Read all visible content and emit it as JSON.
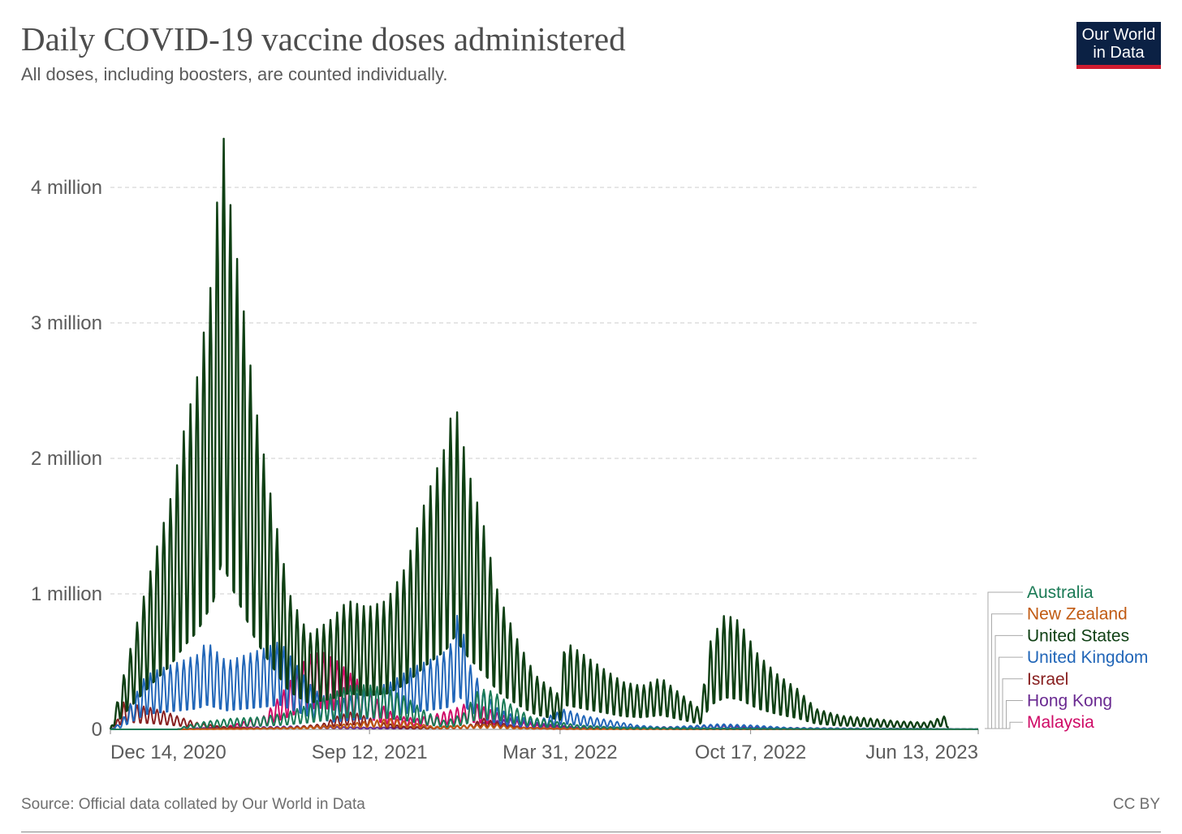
{
  "header": {
    "title": "Daily COVID-19 vaccine doses administered",
    "subtitle": "All doses, including boosters, are counted individually.",
    "logo_line1": "Our World",
    "logo_line2": "in Data"
  },
  "footer": {
    "source": "Source: Official data collated by Our World in Data",
    "license": "CC BY"
  },
  "chart_data": {
    "type": "line",
    "title": "Daily COVID-19 vaccine doses administered",
    "subtitle": "All doses, including boosters, are counted individually.",
    "xlabel": "",
    "ylabel": "",
    "x_start": "2020-12-14",
    "x_end": "2023-06-13",
    "ylim": [
      0,
      4600000
    ],
    "y_ticks": [
      {
        "value": 0,
        "label": "0"
      },
      {
        "value": 1000000,
        "label": "1 million"
      },
      {
        "value": 2000000,
        "label": "2 million"
      },
      {
        "value": 3000000,
        "label": "3 million"
      },
      {
        "value": 4000000,
        "label": "4 million"
      }
    ],
    "x_ticks": [
      {
        "date": "2020-12-14",
        "label": "Dec 14, 2020"
      },
      {
        "date": "2021-09-12",
        "label": "Sep 12, 2021"
      },
      {
        "date": "2022-03-31",
        "label": "Mar 31, 2022"
      },
      {
        "date": "2022-10-17",
        "label": "Oct 17, 2022"
      },
      {
        "date": "2023-06-13",
        "label": "Jun 13, 2023"
      }
    ],
    "grid": "horizontal dashed",
    "legend_position": "right",
    "series": [
      {
        "name": "Australia",
        "color": "#1a7a55",
        "points": [
          [
            "2020-12-14",
            0
          ],
          [
            "2021-02-22",
            0
          ],
          [
            "2021-03-05",
            30000
          ],
          [
            "2021-03-25",
            60000
          ],
          [
            "2021-04-20",
            80000
          ],
          [
            "2021-05-20",
            90000
          ],
          [
            "2021-06-15",
            120000
          ],
          [
            "2021-07-10",
            180000
          ],
          [
            "2021-07-30",
            250000
          ],
          [
            "2021-08-20",
            320000
          ],
          [
            "2021-09-10",
            330000
          ],
          [
            "2021-09-30",
            300000
          ],
          [
            "2021-10-20",
            240000
          ],
          [
            "2021-11-10",
            130000
          ],
          [
            "2021-12-01",
            60000
          ],
          [
            "2021-12-20",
            120000
          ],
          [
            "2022-01-05",
            300000
          ],
          [
            "2022-01-20",
            280000
          ],
          [
            "2022-02-10",
            170000
          ],
          [
            "2022-03-01",
            90000
          ],
          [
            "2022-03-25",
            60000
          ],
          [
            "2022-04-20",
            30000
          ],
          [
            "2022-06-01",
            15000
          ],
          [
            "2022-09-01",
            8000
          ],
          [
            "2023-01-01",
            3000
          ],
          [
            "2023-06-13",
            1000
          ]
        ]
      },
      {
        "name": "New Zealand",
        "color": "#c15b13",
        "points": [
          [
            "2020-12-14",
            0
          ],
          [
            "2021-02-20",
            0
          ],
          [
            "2021-05-01",
            5000
          ],
          [
            "2021-07-01",
            15000
          ],
          [
            "2021-08-20",
            40000
          ],
          [
            "2021-09-10",
            60000
          ],
          [
            "2021-10-05",
            80000
          ],
          [
            "2021-10-25",
            50000
          ],
          [
            "2021-11-20",
            20000
          ],
          [
            "2022-01-20",
            40000
          ],
          [
            "2022-02-15",
            15000
          ],
          [
            "2022-05-01",
            3000
          ],
          [
            "2023-06-13",
            500
          ]
        ]
      },
      {
        "name": "United States",
        "color": "#0f4014",
        "points": [
          [
            "2020-12-14",
            0
          ],
          [
            "2020-12-28",
            400000
          ],
          [
            "2021-01-15",
            900000
          ],
          [
            "2021-01-30",
            1300000
          ],
          [
            "2021-02-15",
            1700000
          ],
          [
            "2021-03-01",
            2200000
          ],
          [
            "2021-03-15",
            2600000
          ],
          [
            "2021-04-01",
            3400000
          ],
          [
            "2021-04-10",
            4500000
          ],
          [
            "2021-04-20",
            3800000
          ],
          [
            "2021-05-01",
            3200000
          ],
          [
            "2021-05-15",
            2400000
          ],
          [
            "2021-06-01",
            1700000
          ],
          [
            "2021-06-20",
            1000000
          ],
          [
            "2021-07-10",
            700000
          ],
          [
            "2021-08-01",
            800000
          ],
          [
            "2021-08-20",
            950000
          ],
          [
            "2021-09-10",
            900000
          ],
          [
            "2021-09-30",
            950000
          ],
          [
            "2021-10-20",
            1200000
          ],
          [
            "2021-11-10",
            1700000
          ],
          [
            "2021-12-01",
            2100000
          ],
          [
            "2021-12-10",
            2450000
          ],
          [
            "2021-12-25",
            1900000
          ],
          [
            "2022-01-10",
            1500000
          ],
          [
            "2022-01-25",
            1000000
          ],
          [
            "2022-02-15",
            650000
          ],
          [
            "2022-03-05",
            400000
          ],
          [
            "2022-03-31",
            250000
          ],
          [
            "2022-04-05",
            650000
          ],
          [
            "2022-04-25",
            550000
          ],
          [
            "2022-05-15",
            450000
          ],
          [
            "2022-06-05",
            350000
          ],
          [
            "2022-06-25",
            320000
          ],
          [
            "2022-07-15",
            380000
          ],
          [
            "2022-08-05",
            260000
          ],
          [
            "2022-08-25",
            150000
          ],
          [
            "2022-09-05",
            650000
          ],
          [
            "2022-09-20",
            850000
          ],
          [
            "2022-10-05",
            800000
          ],
          [
            "2022-10-25",
            550000
          ],
          [
            "2022-11-15",
            400000
          ],
          [
            "2022-12-05",
            300000
          ],
          [
            "2022-12-25",
            150000
          ],
          [
            "2023-01-20",
            100000
          ],
          [
            "2023-02-20",
            80000
          ],
          [
            "2023-03-20",
            60000
          ],
          [
            "2023-04-20",
            50000
          ],
          [
            "2023-05-10",
            100000
          ],
          [
            "2023-05-13",
            30000
          ]
        ]
      },
      {
        "name": "United Kingdom",
        "color": "#2166b8",
        "points": [
          [
            "2020-12-14",
            0
          ],
          [
            "2020-12-25",
            50000
          ],
          [
            "2021-01-05",
            200000
          ],
          [
            "2021-01-20",
            400000
          ],
          [
            "2021-02-05",
            450000
          ],
          [
            "2021-02-25",
            500000
          ],
          [
            "2021-03-15",
            550000
          ],
          [
            "2021-03-25",
            650000
          ],
          [
            "2021-04-15",
            500000
          ],
          [
            "2021-05-05",
            550000
          ],
          [
            "2021-05-25",
            600000
          ],
          [
            "2021-06-10",
            650000
          ],
          [
            "2021-06-25",
            500000
          ],
          [
            "2021-07-15",
            300000
          ],
          [
            "2021-08-05",
            200000
          ],
          [
            "2021-08-25",
            250000
          ],
          [
            "2021-09-15",
            300000
          ],
          [
            "2021-10-05",
            350000
          ],
          [
            "2021-10-25",
            450000
          ],
          [
            "2021-11-10",
            500000
          ],
          [
            "2021-11-25",
            550000
          ],
          [
            "2021-12-05",
            600000
          ],
          [
            "2021-12-15",
            900000
          ],
          [
            "2021-12-25",
            500000
          ],
          [
            "2022-01-10",
            280000
          ],
          [
            "2022-01-25",
            150000
          ],
          [
            "2022-02-15",
            90000
          ],
          [
            "2022-03-10",
            70000
          ],
          [
            "2022-04-05",
            150000
          ],
          [
            "2022-04-25",
            100000
          ],
          [
            "2022-05-20",
            70000
          ],
          [
            "2022-06-20",
            30000
          ],
          [
            "2022-07-20",
            15000
          ],
          [
            "2022-09-15",
            40000
          ],
          [
            "2022-10-20",
            30000
          ],
          [
            "2022-12-01",
            10000
          ],
          [
            "2023-06-13",
            2000
          ]
        ]
      },
      {
        "name": "Israel",
        "color": "#882020",
        "points": [
          [
            "2020-12-14",
            0
          ],
          [
            "2020-12-20",
            50000
          ],
          [
            "2020-12-28",
            200000
          ],
          [
            "2021-01-10",
            180000
          ],
          [
            "2021-01-25",
            160000
          ],
          [
            "2021-02-10",
            130000
          ],
          [
            "2021-02-25",
            90000
          ],
          [
            "2021-03-15",
            50000
          ],
          [
            "2021-04-10",
            20000
          ],
          [
            "2021-05-15",
            10000
          ],
          [
            "2021-06-20",
            15000
          ],
          [
            "2021-07-25",
            40000
          ],
          [
            "2021-08-10",
            100000
          ],
          [
            "2021-08-25",
            130000
          ],
          [
            "2021-09-10",
            90000
          ],
          [
            "2021-09-25",
            50000
          ],
          [
            "2021-10-20",
            20000
          ],
          [
            "2021-11-20",
            15000
          ],
          [
            "2021-12-25",
            30000
          ],
          [
            "2022-01-10",
            80000
          ],
          [
            "2022-01-25",
            50000
          ],
          [
            "2022-02-20",
            15000
          ],
          [
            "2022-04-01",
            5000
          ],
          [
            "2023-06-13",
            300
          ]
        ]
      },
      {
        "name": "Hong Kong",
        "color": "#6a2a91",
        "points": [
          [
            "2020-12-14",
            0
          ],
          [
            "2021-02-26",
            0
          ],
          [
            "2021-03-15",
            10000
          ],
          [
            "2021-05-01",
            15000
          ],
          [
            "2021-07-01",
            25000
          ],
          [
            "2021-09-01",
            15000
          ],
          [
            "2021-11-01",
            15000
          ],
          [
            "2021-12-20",
            30000
          ],
          [
            "2022-01-20",
            60000
          ],
          [
            "2022-02-10",
            80000
          ],
          [
            "2022-02-25",
            60000
          ],
          [
            "2022-03-15",
            40000
          ],
          [
            "2022-04-20",
            15000
          ],
          [
            "2022-06-01",
            15000
          ],
          [
            "2022-08-01",
            20000
          ],
          [
            "2022-09-10",
            30000
          ],
          [
            "2022-10-20",
            15000
          ],
          [
            "2023-01-01",
            10000
          ],
          [
            "2023-06-13",
            2000
          ]
        ]
      },
      {
        "name": "Malaysia",
        "color": "#cf0a66",
        "points": [
          [
            "2020-12-14",
            0
          ],
          [
            "2021-02-24",
            0
          ],
          [
            "2021-04-15",
            20000
          ],
          [
            "2021-05-25",
            100000
          ],
          [
            "2021-06-10",
            250000
          ],
          [
            "2021-06-25",
            400000
          ],
          [
            "2021-07-10",
            550000
          ],
          [
            "2021-07-25",
            570000
          ],
          [
            "2021-08-10",
            500000
          ],
          [
            "2021-08-25",
            400000
          ],
          [
            "2021-09-10",
            300000
          ],
          [
            "2021-09-25",
            180000
          ],
          [
            "2021-10-10",
            100000
          ],
          [
            "2021-11-01",
            80000
          ],
          [
            "2021-11-25",
            120000
          ],
          [
            "2021-12-10",
            150000
          ],
          [
            "2021-12-25",
            200000
          ],
          [
            "2022-01-05",
            180000
          ],
          [
            "2022-01-25",
            120000
          ],
          [
            "2022-02-15",
            60000
          ],
          [
            "2022-03-10",
            30000
          ],
          [
            "2022-05-01",
            8000
          ],
          [
            "2022-08-01",
            3000
          ],
          [
            "2023-06-13",
            500
          ]
        ]
      }
    ]
  }
}
